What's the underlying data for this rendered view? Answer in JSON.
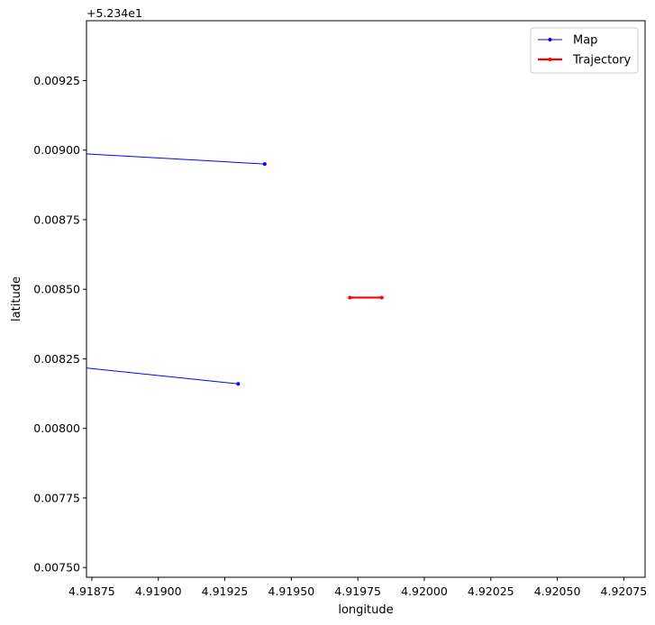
{
  "chart_data": {
    "type": "line",
    "title": "",
    "xlabel": "longitude",
    "ylabel": "latitude",
    "offset_text": "+5.234e1",
    "xlim": [
      4.91873,
      4.92083
    ],
    "ylim": [
      0.007465,
      0.009465
    ],
    "x_ticks": [
      4.91875,
      4.919,
      4.91925,
      4.9195,
      4.91975,
      4.92,
      4.92025,
      4.9205,
      4.92075
    ],
    "x_tick_labels": [
      "4.91875",
      "4.91900",
      "4.91925",
      "4.91950",
      "4.91975",
      "4.92000",
      "4.92025",
      "4.92050",
      "4.92075"
    ],
    "y_ticks": [
      0.0075,
      0.00775,
      0.008,
      0.00825,
      0.0085,
      0.00875,
      0.009,
      0.00925
    ],
    "y_tick_labels": [
      "0.00750",
      "0.00775",
      "0.00800",
      "0.00825",
      "0.00850",
      "0.00875",
      "0.00900",
      "0.00925"
    ],
    "grid": false,
    "legend_position": "top-right",
    "series": [
      {
        "name": "Map",
        "color": "#0000ff",
        "segments": [
          {
            "x": [
              4.9187,
              4.9194
            ],
            "y": [
              0.008988,
              0.00895
            ]
          },
          {
            "x": [
              4.9187,
              4.9193
            ],
            "y": [
              0.00822,
              0.00816
            ]
          }
        ]
      },
      {
        "name": "Trajectory",
        "color": "#ff0000",
        "segments": [
          {
            "x": [
              4.91972,
              4.91984
            ],
            "y": [
              0.00847,
              0.00847
            ]
          }
        ]
      }
    ]
  }
}
